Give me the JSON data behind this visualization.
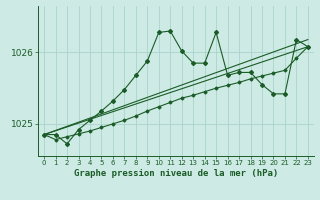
{
  "bg_color": "#ceeae4",
  "grid_color": "#aad4cc",
  "line_color": "#1a5c28",
  "title": "Graphe pression niveau de la mer (hPa)",
  "ylim": [
    1024.55,
    1026.65
  ],
  "xlim": [
    -0.5,
    23.5
  ],
  "xticks": [
    0,
    1,
    2,
    3,
    4,
    5,
    6,
    7,
    8,
    9,
    10,
    11,
    12,
    13,
    14,
    15,
    16,
    17,
    18,
    19,
    20,
    21,
    22,
    23
  ],
  "yticks": [
    1025,
    1026
  ],
  "series1_x": [
    0,
    1,
    2,
    3,
    4,
    5,
    6,
    7,
    8,
    9,
    10,
    11,
    12,
    13,
    14,
    15,
    16,
    17,
    18,
    19,
    20,
    21,
    22,
    23
  ],
  "series1_y": [
    1024.85,
    1024.85,
    1024.72,
    1024.92,
    1025.05,
    1025.18,
    1025.32,
    1025.48,
    1025.68,
    1025.88,
    1026.28,
    1026.3,
    1026.02,
    1025.85,
    1025.85,
    1026.28,
    1025.68,
    1025.72,
    1025.72,
    1025.55,
    1025.42,
    1025.42,
    1026.18,
    1026.08
  ],
  "series2_x": [
    0,
    1,
    2,
    3,
    4,
    5,
    6,
    7,
    8,
    9,
    10,
    11,
    12,
    13,
    14,
    15,
    16,
    17,
    18,
    19,
    20,
    21,
    22,
    23
  ],
  "series2_y": [
    1024.85,
    1024.78,
    1024.82,
    1024.86,
    1024.9,
    1024.95,
    1025.0,
    1025.05,
    1025.11,
    1025.18,
    1025.24,
    1025.3,
    1025.36,
    1025.4,
    1025.45,
    1025.5,
    1025.54,
    1025.58,
    1025.63,
    1025.67,
    1025.71,
    1025.75,
    1025.92,
    1026.08
  ],
  "series3_x": [
    0,
    23
  ],
  "series3_y": [
    1024.85,
    1026.18
  ],
  "series4_x": [
    0,
    23
  ],
  "series4_y": [
    1024.85,
    1026.08
  ]
}
